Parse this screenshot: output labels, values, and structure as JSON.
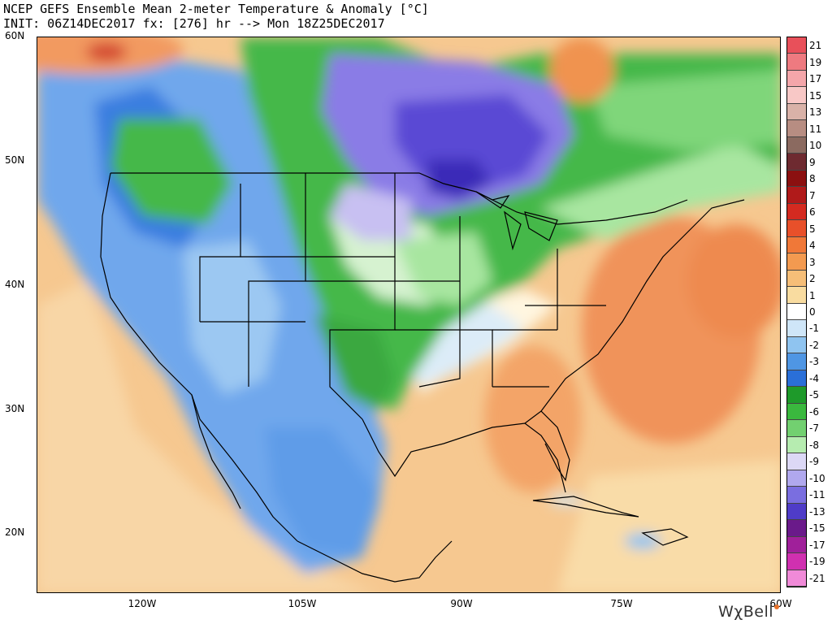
{
  "title_line1": "NCEP GEFS Ensemble Mean 2-meter Temperature & Anomaly [°C]",
  "title_line2": "INIT: 06Z14DEC2017 fx: [276] hr --> Mon 18Z25DEC2017",
  "brand": "WχBell",
  "lat_labels": [
    "60N",
    "50N",
    "40N",
    "30N",
    "20N"
  ],
  "lon_labels": [
    "120W",
    "105W",
    "90W",
    "75W",
    "60W"
  ],
  "colorbar": {
    "labels": [
      "21",
      "19",
      "17",
      "15",
      "13",
      "11",
      "10",
      "9",
      "8",
      "7",
      "6",
      "5",
      "4",
      "3",
      "2",
      "1",
      "0",
      "-1",
      "-2",
      "-3",
      "-4",
      "-5",
      "-6",
      "-7",
      "-8",
      "-9",
      "-10",
      "-11",
      "-13",
      "-15",
      "-17",
      "-19",
      "-21"
    ],
    "colors": [
      "#e8505a",
      "#ee7a80",
      "#f4a6aa",
      "#f8c8c6",
      "#d9b2a8",
      "#b78d82",
      "#8b6a60",
      "#6e2a30",
      "#8b1010",
      "#b01a1a",
      "#d42a20",
      "#e8502a",
      "#f07838",
      "#f39a50",
      "#f6be78",
      "#f9dca0",
      "#ffffff",
      "#cfe6f8",
      "#8fc4f0",
      "#4f96e4",
      "#2a6fd8",
      "#1e9a2a",
      "#3ab83e",
      "#72d070",
      "#b6ecb0",
      "#dcd8f6",
      "#b0a8ee",
      "#7a6ee0",
      "#4f3cc8",
      "#6a1a8a",
      "#a0209a",
      "#d030b0",
      "#f08ad8"
    ]
  },
  "palette": {
    "warm_light": "#f9dca0",
    "warm": "#f4b279",
    "warm_dark": "#ee8a50",
    "cold_light": "#cfe6f8",
    "cold": "#6fa7ec",
    "cold_dark": "#3a7ee0",
    "green": "#45b84a",
    "green_light": "#a8e6a0",
    "purple": "#8a7ce6",
    "purple_dark": "#4f3cc8"
  }
}
